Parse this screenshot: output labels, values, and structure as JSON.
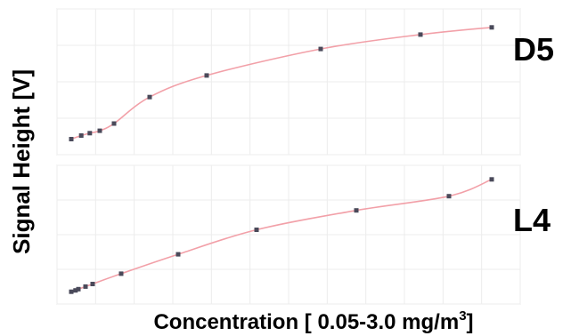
{
  "chart_data": {
    "type": "scatter",
    "ylabel": "Signal Height [V]",
    "xlabel": {
      "prefix": "Concentration [ 0.05-3.0 mg/m",
      "superscript": "3",
      "suffix": "]"
    },
    "panels": [
      {
        "label": "D5",
        "grid": true,
        "x": [
          0.05,
          0.12,
          0.18,
          0.25,
          0.35,
          0.6,
          1.0,
          1.8,
          2.5,
          3.0
        ],
        "y": [
          0.07,
          0.1,
          0.12,
          0.14,
          0.2,
          0.42,
          0.6,
          0.82,
          0.94,
          1.0
        ],
        "fit_line": true,
        "xlim": [
          0.0,
          3.1
        ],
        "ylim": [
          0.0,
          1.05
        ]
      },
      {
        "label": "L4",
        "grid": true,
        "x": [
          0.05,
          0.08,
          0.1,
          0.15,
          0.2,
          0.4,
          0.8,
          1.35,
          2.05,
          2.7,
          3.0
        ],
        "y": [
          0.04,
          0.05,
          0.06,
          0.08,
          0.1,
          0.18,
          0.33,
          0.52,
          0.67,
          0.78,
          0.91
        ],
        "fit_line": true,
        "xlim": [
          0.0,
          3.1
        ],
        "ylim": [
          0.0,
          0.95
        ]
      }
    ]
  }
}
